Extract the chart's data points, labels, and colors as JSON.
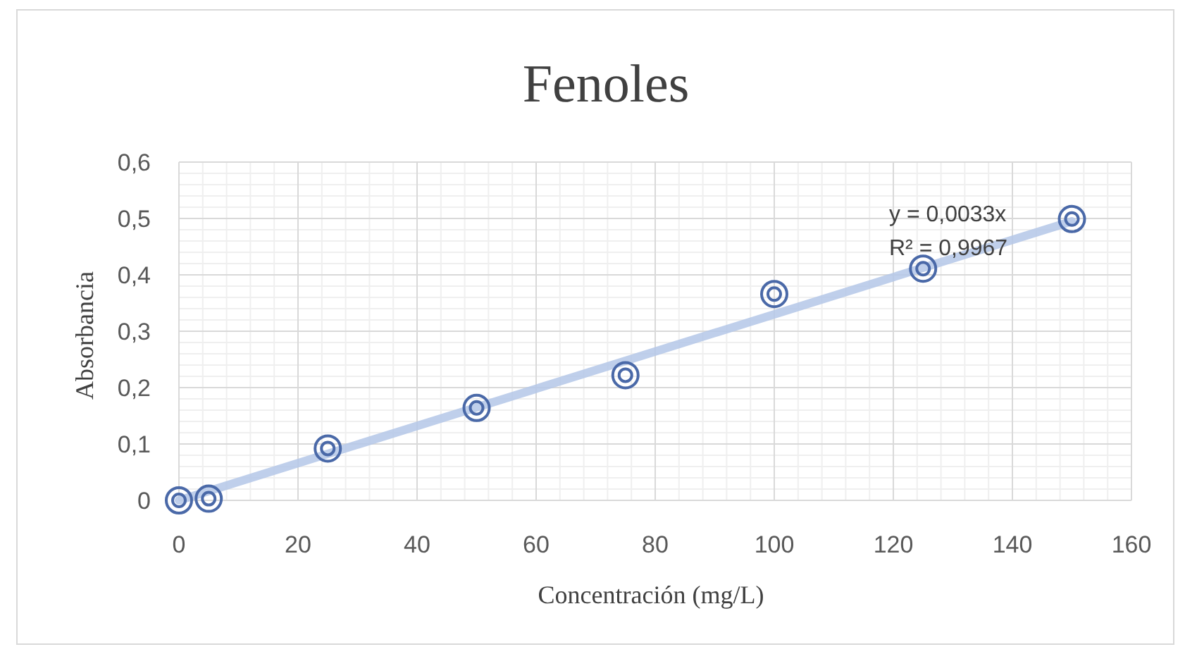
{
  "chart_data": {
    "type": "scatter",
    "title": "Fenoles",
    "xlabel": "Concentración (mg/L)",
    "ylabel": "Absorbancia",
    "x": [
      0,
      5,
      25,
      50,
      75,
      100,
      125,
      150
    ],
    "series": [
      {
        "color": "#4a69a8",
        "values": [
          0,
          0.003,
          0.092,
          0.164,
          0.222,
          0.366,
          0.411,
          0.499
        ]
      },
      {
        "type": "line",
        "color": "#b4c7e7",
        "x": [
          0,
          150
        ],
        "values": [
          0,
          0.495
        ]
      }
    ],
    "annotations": [
      "y = 0,0033x",
      "R² = 0,9967"
    ],
    "xlim": [
      0,
      160
    ],
    "xticks": [
      0,
      20,
      40,
      60,
      80,
      100,
      120,
      140,
      160
    ],
    "ylim": [
      0,
      0.6
    ],
    "yticks": [
      0,
      {
        "value": 0.1,
        "label": "0,1"
      },
      {
        "value": 0.2,
        "label": "0,2"
      },
      {
        "value": 0.3,
        "label": "0,3"
      },
      {
        "value": 0.4,
        "label": "0,4"
      },
      {
        "value": 0.5,
        "label": "0,5"
      },
      {
        "value": 0.6,
        "label": "0,6"
      }
    ],
    "grid": true,
    "marker": "circle"
  }
}
